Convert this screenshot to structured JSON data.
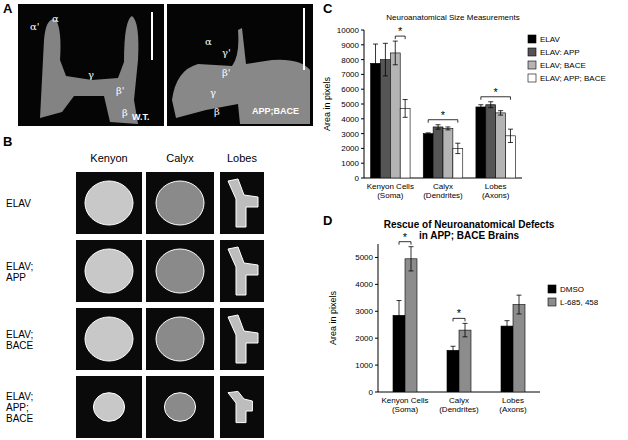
{
  "panels": {
    "A": {
      "label": "A",
      "images": [
        {
          "labels": [
            "α'",
            "α",
            "γ",
            "β'",
            "β"
          ],
          "caption": "W.T."
        },
        {
          "labels": [
            "α",
            "γ'",
            "β'",
            "γ",
            "β"
          ],
          "caption": "APP;BACE"
        }
      ]
    },
    "B": {
      "label": "B",
      "columns": [
        "Kenyon",
        "Calyx",
        "Lobes"
      ],
      "rows": [
        "ELAV",
        "ELAV;\nAPP",
        "ELAV;\nBACE",
        "ELAV;\nAPP;\nBACE"
      ]
    },
    "C": {
      "label": "C"
    },
    "D": {
      "label": "D"
    }
  },
  "chart_data": [
    {
      "type": "bar",
      "title": "Neuroanatomical Size Measurements",
      "y_label": "Area in pixels",
      "categories": [
        "Kenyon Cells\n(Soma)",
        "Calyx\n(Dendrites)",
        "Lobes\n(Axons)"
      ],
      "series": [
        {
          "name": "ELAV",
          "color": "#000000",
          "values": [
            7750,
            3000,
            4800
          ],
          "errors": [
            1300,
            50,
            150
          ]
        },
        {
          "name": "ELAV: APP",
          "color": "#555555",
          "values": [
            8000,
            3450,
            4950
          ],
          "errors": [
            1100,
            150,
            200
          ]
        },
        {
          "name": "ELAV; BACE",
          "color": "#b4b4b4",
          "values": [
            8450,
            3350,
            4400
          ],
          "errors": [
            800,
            100,
            150
          ]
        },
        {
          "name": "ELAV; APP; BACE",
          "color": "#ffffff",
          "values": [
            4700,
            2000,
            2850
          ],
          "errors": [
            600,
            350,
            450
          ]
        }
      ],
      "ylim": [
        0,
        10000
      ],
      "yticks": [
        0,
        1000,
        2000,
        3000,
        4000,
        5000,
        6000,
        7000,
        8000,
        9000,
        10000
      ],
      "legend": "right",
      "annotations": [
        {
          "text": "*",
          "category": 0,
          "from": 2,
          "to": 3
        },
        {
          "text": "*",
          "category": 1,
          "from": 0,
          "to": 3
        },
        {
          "text": "*",
          "category": 2,
          "from": 0,
          "to": 3
        }
      ]
    },
    {
      "type": "bar",
      "title": "Rescue of Neuroanatomical Defects\nin APP; BACE Brains",
      "y_label": "Area in pixels",
      "categories": [
        "Kenyon Cells\n(Soma)",
        "Calyx\n(Dendrites)",
        "Lobes\n(Axons)"
      ],
      "series": [
        {
          "name": "DMSO",
          "color": "#000000",
          "values": [
            2850,
            1550,
            2450
          ],
          "errors": [
            550,
            150,
            200
          ]
        },
        {
          "name": "L-685, 458",
          "color": "#8c8c8c",
          "values": [
            4950,
            2300,
            3250
          ],
          "errors": [
            450,
            250,
            350
          ]
        }
      ],
      "ylim": [
        0,
        5500
      ],
      "yticks": [
        0,
        1000,
        2000,
        3000,
        4000,
        5000
      ],
      "legend": "right",
      "annotations": [
        {
          "text": "*",
          "category": 0,
          "from": 0,
          "to": 1
        },
        {
          "text": "*",
          "category": 1,
          "from": 0,
          "to": 1
        }
      ]
    }
  ]
}
